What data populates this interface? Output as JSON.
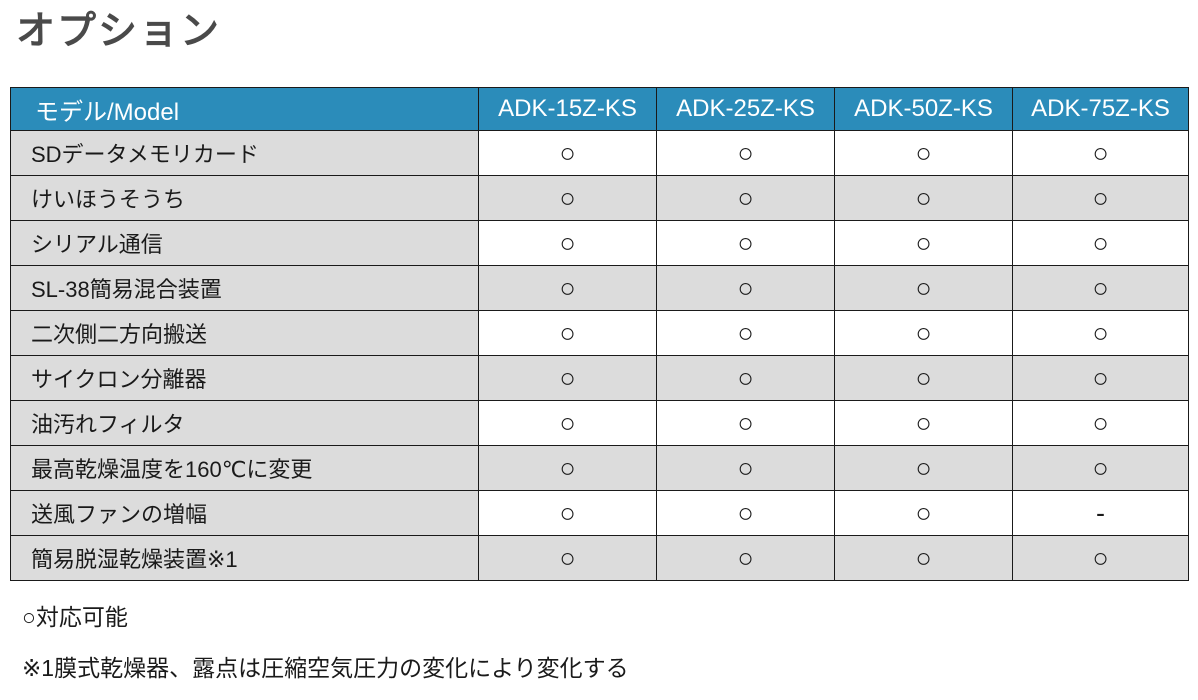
{
  "page_title": "オプション",
  "table": {
    "header": {
      "model_label": "モデル/Model",
      "columns": [
        "ADK-15Z-KS",
        "ADK-25Z-KS",
        "ADK-50Z-KS",
        "ADK-75Z-KS"
      ]
    },
    "rows": [
      {
        "label": "SDデータメモリカード",
        "values": [
          "○",
          "○",
          "○",
          "○"
        ]
      },
      {
        "label": "けいほうそうち",
        "values": [
          "○",
          "○",
          "○",
          "○"
        ]
      },
      {
        "label": "シリアル通信",
        "values": [
          "○",
          "○",
          "○",
          "○"
        ]
      },
      {
        "label": "SL-38簡易混合装置",
        "values": [
          "○",
          "○",
          "○",
          "○"
        ]
      },
      {
        "label": "二次側二方向搬送",
        "values": [
          "○",
          "○",
          "○",
          "○"
        ]
      },
      {
        "label": "サイクロン分離器",
        "values": [
          "○",
          "○",
          "○",
          "○"
        ]
      },
      {
        "label": "油汚れフィルタ",
        "values": [
          "○",
          "○",
          "○",
          "○"
        ]
      },
      {
        "label": "最高乾燥温度を160℃に変更",
        "values": [
          "○",
          "○",
          "○",
          "○"
        ]
      },
      {
        "label": "送風ファンの増幅",
        "values": [
          "○",
          "○",
          "○",
          "-"
        ]
      },
      {
        "label": "簡易脱湿乾燥装置※1",
        "values": [
          "○",
          "○",
          "○",
          "○"
        ]
      }
    ]
  },
  "notes": [
    "○対応可能",
    "※1膜式乾燥器、露点は圧縮空気圧力の変化により変化する"
  ],
  "legend": {
    "circle_meaning": "対応可能"
  },
  "colors": {
    "header_bg": "#2b8cba",
    "header_text": "#ffffff",
    "row_gray": "#dcdcdc",
    "row_white": "#ffffff",
    "border": "#1a1a1a",
    "title_text": "#4a4a4a",
    "body_text": "#1a1a1a"
  }
}
